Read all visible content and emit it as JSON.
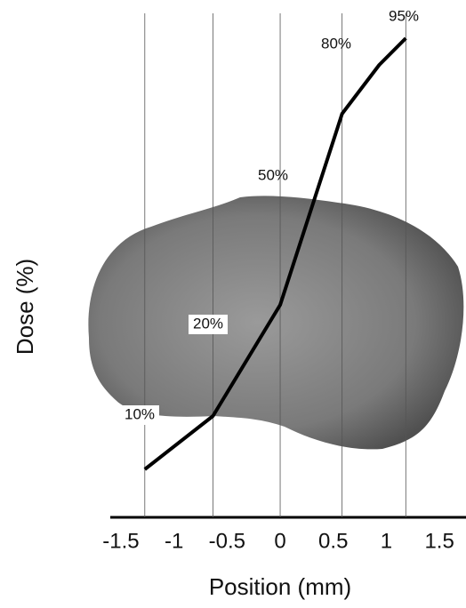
{
  "chart_data": {
    "type": "line",
    "x_label": "Position (mm)",
    "y_label": "Dose (%)",
    "x": [
      -1.275,
      -0.633,
      0,
      0.583,
      0.933,
      1.183
    ],
    "series": [
      {
        "color": "#000000",
        "values": [
          -2,
          10,
          35,
          78,
          89,
          95
        ]
      }
    ],
    "xlim": [
      -1.6,
      1.75
    ],
    "xticks": [
      -1.5,
      -1,
      -0.5,
      0,
      0.5,
      1,
      1.5
    ],
    "ylim": [
      -12.8,
      100.6
    ],
    "annotations": [
      "10%",
      "20%",
      "50%",
      "80%",
      "95%"
    ]
  }
}
